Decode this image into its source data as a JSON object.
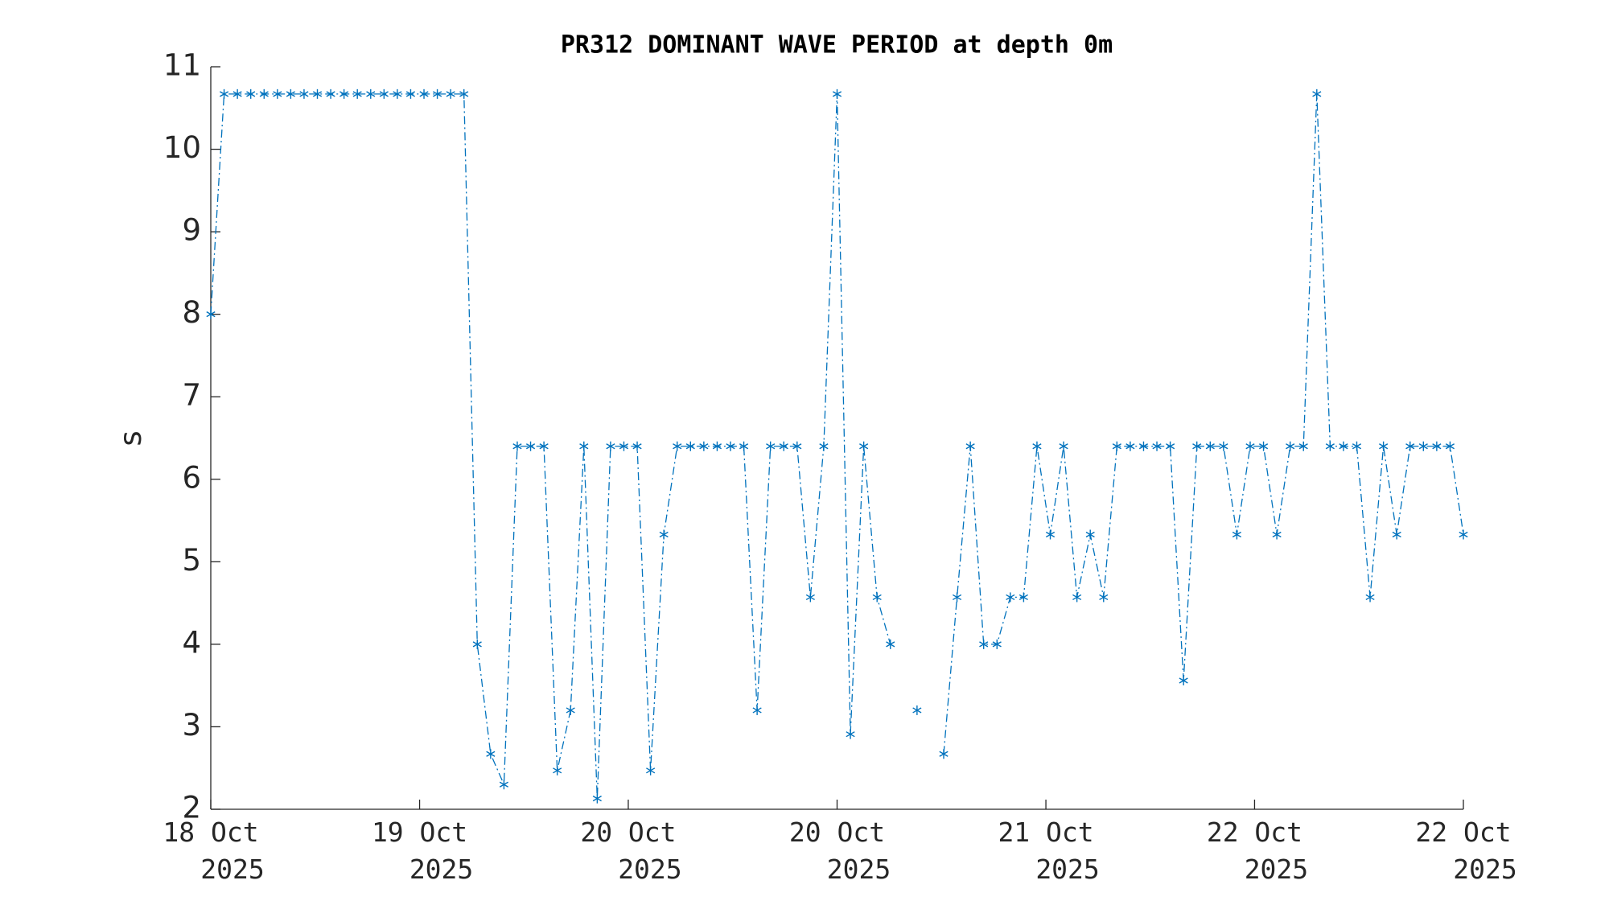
{
  "chart_data": {
    "type": "line",
    "title": "PR312 DOMINANT WAVE PERIOD at depth 0m",
    "ylabel": "s",
    "x": [
      0,
      1,
      2,
      3,
      4,
      5,
      6,
      7,
      8,
      9,
      10,
      11,
      12,
      13,
      14,
      15,
      16,
      17,
      18,
      19,
      20,
      21,
      22,
      23,
      24,
      25,
      26,
      27,
      28,
      29,
      30,
      31,
      32,
      33,
      34,
      35,
      36,
      37,
      38,
      39,
      40,
      41,
      42,
      43,
      44,
      45,
      46,
      47,
      48,
      49,
      50,
      51,
      52,
      53,
      54,
      55,
      56,
      57,
      58,
      59,
      60,
      61,
      62,
      63,
      64,
      65,
      66,
      67,
      68,
      69,
      70,
      71,
      72,
      73,
      74,
      75,
      76,
      77,
      78,
      79,
      80,
      81,
      82,
      83,
      84,
      85,
      86,
      87,
      88,
      89,
      90,
      91,
      92,
      93,
      94
    ],
    "values": [
      8,
      10.67,
      10.67,
      10.67,
      10.67,
      10.67,
      10.67,
      10.67,
      10.67,
      10.67,
      10.67,
      10.67,
      10.67,
      10.67,
      10.67,
      10.67,
      10.67,
      10.67,
      10.67,
      10.67,
      4,
      2.67,
      2.3,
      6.4,
      6.4,
      6.4,
      2.47,
      3.2,
      6.4,
      2.13,
      6.4,
      6.4,
      6.4,
      2.47,
      5.33,
      6.4,
      6.4,
      6.4,
      6.4,
      6.4,
      6.4,
      3.2,
      6.4,
      6.4,
      6.4,
      4.57,
      6.4,
      10.67,
      2.91,
      6.4,
      4.57,
      4,
      null,
      3.2,
      null,
      2.67,
      4.57,
      6.4,
      4,
      4,
      4.57,
      4.57,
      6.4,
      5.33,
      6.4,
      4.57,
      5.33,
      4.57,
      6.4,
      6.4,
      6.4,
      6.4,
      6.4,
      3.56,
      6.4,
      6.4,
      6.4,
      5.33,
      6.4,
      6.4,
      5.33,
      6.4,
      6.4,
      10.67,
      6.4,
      6.4,
      6.4,
      4.57,
      6.4,
      5.33,
      6.4,
      6.4,
      6.4,
      6.4,
      5.33
    ],
    "color": "#0072bd",
    "xlim": [
      0,
      94
    ],
    "xticks": [
      {
        "value": 0,
        "label": "18 Oct\n2025"
      },
      {
        "value": 15.67,
        "label": "19 Oct\n2025"
      },
      {
        "value": 31.33,
        "label": "20 Oct\n2025"
      },
      {
        "value": 47,
        "label": "20 Oct\n2025"
      },
      {
        "value": 62.67,
        "label": "21 Oct\n2025"
      },
      {
        "value": 78.33,
        "label": "22 Oct\n2025"
      },
      {
        "value": 94,
        "label": "22 Oct\n2025"
      }
    ],
    "ylim": [
      2,
      11
    ],
    "yticks": [
      2,
      3,
      4,
      5,
      6,
      7,
      8,
      9,
      10,
      11
    ]
  }
}
